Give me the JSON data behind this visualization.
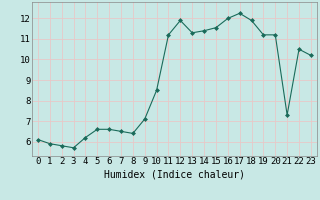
{
  "x": [
    0,
    1,
    2,
    3,
    4,
    5,
    6,
    7,
    8,
    9,
    10,
    11,
    12,
    13,
    14,
    15,
    16,
    17,
    18,
    19,
    20,
    21,
    22,
    23
  ],
  "y": [
    6.1,
    5.9,
    5.8,
    5.7,
    6.2,
    6.6,
    6.6,
    6.5,
    6.4,
    7.1,
    8.5,
    11.2,
    11.9,
    11.3,
    11.4,
    11.55,
    12.0,
    12.25,
    11.9,
    11.2,
    11.2,
    7.3,
    10.5,
    10.2
  ],
  "line_color": "#1a6b5a",
  "marker": "D",
  "marker_size": 2,
  "bg_color": "#c8e8e5",
  "grid_color": "#e8c8c8",
  "xlabel": "Humidex (Indice chaleur)",
  "xlim": [
    -0.5,
    23.5
  ],
  "ylim": [
    5.3,
    12.8
  ],
  "ytick_values": [
    6,
    7,
    8,
    9,
    10,
    11,
    12
  ],
  "xlabel_fontsize": 7,
  "tick_fontsize": 6.5
}
